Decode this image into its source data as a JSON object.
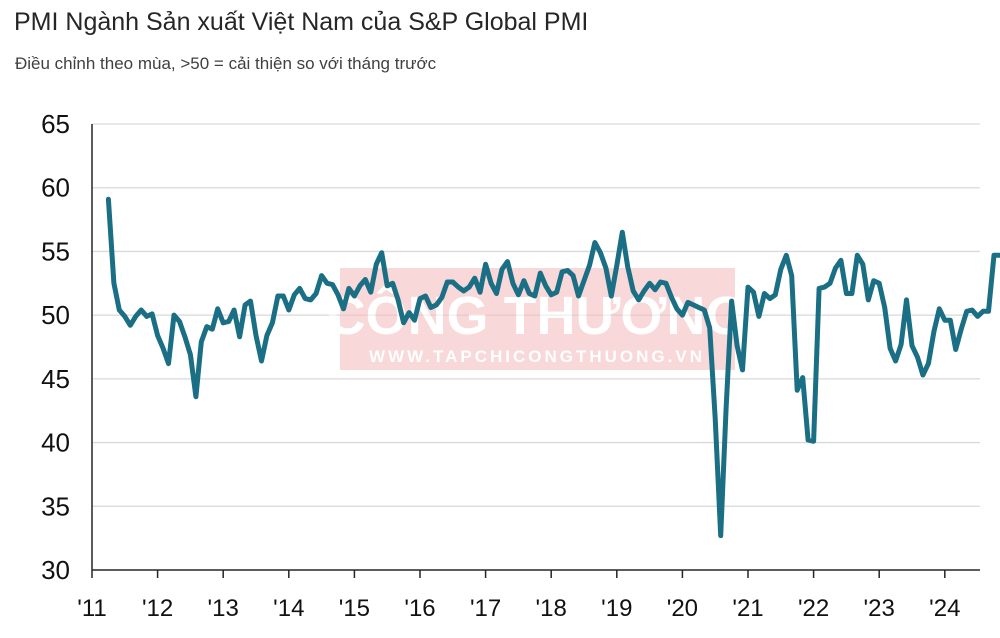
{
  "header": {
    "title": "PMI Ngành Sản xuất Việt Nam của S&P Global PMI",
    "subtitle": "Điều chỉnh theo mùa, >50 = cải thiện so với tháng trước"
  },
  "watermark": {
    "brand": "CÔNG THƯƠNG",
    "url": "WWW.TAPCHICONGTHUONG.VN"
  },
  "colors": {
    "line": "#1a6f85",
    "grid": "#d9d9d9",
    "axis": "#262626",
    "watermark": "#e8a0a0"
  },
  "chart_data": {
    "type": "line",
    "title": "PMI Ngành Sản xuất Việt Nam của S&P Global PMI",
    "subtitle": "Điều chỉnh theo mùa, >50 = cải thiện so với tháng trước",
    "xlabel": "",
    "ylabel": "",
    "ylim": [
      30,
      65
    ],
    "yticks": [
      30,
      35,
      40,
      45,
      50,
      55,
      60,
      65
    ],
    "xticks": [
      "'11",
      "'12",
      "'13",
      "'14",
      "'15",
      "'16",
      "'17",
      "'18",
      "'19",
      "'20",
      "'21",
      "'22",
      "'23",
      "'24"
    ],
    "x_start": "2011-04",
    "grid": true,
    "legend": "none",
    "series": [
      {
        "values": [
          59.1,
          52.5,
          50.4,
          49.9,
          49.2,
          49.9,
          50.4,
          49.9,
          50.1,
          48.4,
          47.4,
          46.2,
          50.0,
          49.5,
          48.3,
          46.9,
          43.6,
          47.9,
          49.1,
          48.9,
          50.5,
          49.4,
          49.5,
          50.4,
          48.3,
          50.8,
          51.1,
          48.4,
          46.4,
          48.4,
          49.4,
          51.5,
          51.5,
          50.4,
          51.6,
          52.1,
          51.3,
          51.2,
          51.7,
          53.1,
          52.5,
          52.4,
          51.6,
          50.5,
          52.1,
          51.5,
          52.3,
          52.8,
          51.8,
          54.0,
          54.9,
          52.3,
          52.5,
          51.2,
          49.4,
          50.2,
          49.6,
          51.3,
          51.5,
          50.6,
          50.8,
          51.4,
          52.6,
          52.6,
          52.2,
          51.9,
          52.2,
          52.9,
          51.8,
          54.0,
          52.5,
          51.7,
          53.6,
          54.2,
          52.5,
          51.6,
          52.7,
          51.7,
          51.5,
          53.3,
          52.3,
          51.6,
          51.8,
          53.4,
          53.5,
          53.1,
          51.5,
          52.7,
          53.9,
          55.7,
          54.9,
          53.7,
          51.5,
          53.9,
          56.5,
          53.8,
          51.9,
          51.2,
          51.9,
          52.5,
          52.0,
          52.6,
          52.5,
          51.4,
          50.5,
          50.0,
          51.0,
          50.8,
          50.6,
          50.4,
          49.0,
          41.9,
          32.7,
          42.7,
          51.1,
          47.6,
          45.7,
          52.2,
          51.8,
          49.9,
          51.7,
          51.3,
          51.6,
          53.6,
          54.7,
          53.1,
          44.1,
          45.1,
          40.2,
          40.1,
          52.1,
          52.2,
          52.5,
          53.7,
          54.3,
          51.7,
          51.7,
          54.7,
          54.0,
          51.2,
          52.7,
          52.5,
          50.6,
          47.4,
          46.4,
          47.7,
          51.2,
          47.6,
          46.7,
          45.3,
          46.2,
          48.7,
          50.5,
          49.6,
          49.6,
          47.3,
          48.9,
          50.3,
          50.4,
          49.9,
          50.3,
          50.3,
          54.7,
          54.7
        ]
      }
    ]
  }
}
